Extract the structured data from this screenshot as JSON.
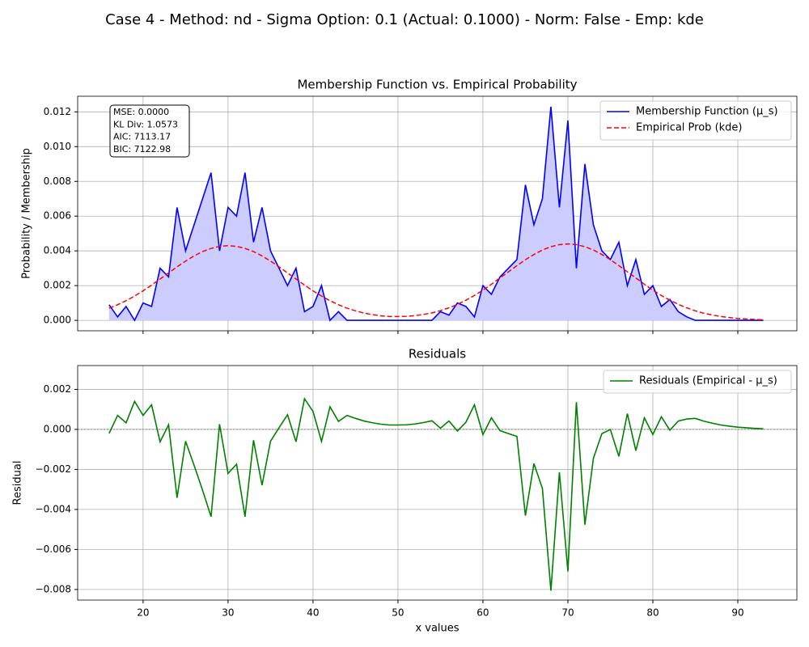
{
  "title": "Case 4 - Method: nd - Sigma Option: 0.1 (Actual: 0.1000) - Norm: False - Emp: kde",
  "chart_data": [
    {
      "type": "line",
      "title": "Membership Function vs. Empirical Probability",
      "y_label": "Probability / Membership",
      "x": [
        16,
        17,
        18,
        19,
        20,
        21,
        22,
        23,
        24,
        25,
        26,
        27,
        28,
        29,
        30,
        31,
        32,
        33,
        34,
        35,
        36,
        37,
        38,
        39,
        40,
        41,
        42,
        43,
        44,
        45,
        46,
        47,
        48,
        49,
        50,
        51,
        52,
        53,
        54,
        55,
        56,
        57,
        58,
        59,
        60,
        61,
        62,
        63,
        64,
        65,
        66,
        67,
        68,
        69,
        70,
        71,
        72,
        73,
        74,
        75,
        76,
        77,
        78,
        79,
        80,
        81,
        82,
        83,
        84,
        85,
        86,
        87,
        88,
        89,
        90,
        91,
        92,
        93
      ],
      "series": [
        {
          "name": "Membership Function (μ_s)",
          "color": "#0000ff",
          "linestyle": "solid",
          "fill": "#ccccff",
          "values": [
            0.0009,
            0.0002,
            0.0008,
            0,
            0.001,
            0.0008,
            0.003,
            0.0025,
            0.0065,
            0.004,
            0.0055,
            0.007,
            0.0085,
            0.004,
            0.0065,
            0.006,
            0.0085,
            0.0045,
            0.0065,
            0.004,
            0.003,
            0.002,
            0.003,
            0.0005,
            0.0008,
            0.002,
            0,
            0.0005,
            0,
            0,
            0,
            0,
            0,
            0,
            0,
            0,
            0,
            0,
            0,
            0.0005,
            0.0003,
            0.001,
            0.0008,
            0.0002,
            0.002,
            0.0015,
            0.0025,
            0.003,
            0.0035,
            0.0078,
            0.0055,
            0.007,
            0.0123,
            0.0065,
            0.0115,
            0.003,
            0.009,
            0.0055,
            0.004,
            0.0035,
            0.0045,
            0.002,
            0.0035,
            0.0015,
            0.002,
            0.0008,
            0.0012,
            0.0005,
            0.0002,
            0,
            0,
            0,
            0,
            0,
            0,
            0,
            0,
            0
          ]
        },
        {
          "name": "Empirical Prob (kde)",
          "color": "#ff0000",
          "linestyle": "dashed",
          "values": [
            0.0007,
            0.0009,
            0.00113,
            0.0014,
            0.0017,
            0.00203,
            0.00238,
            0.00273,
            0.00308,
            0.00341,
            0.00371,
            0.00396,
            0.00414,
            0.00426,
            0.0043,
            0.00426,
            0.00414,
            0.00396,
            0.00371,
            0.00341,
            0.00308,
            0.00273,
            0.00238,
            0.00203,
            0.0017,
            0.0014,
            0.00113,
            0.0009,
            0.0007,
            0.00055,
            0.00042,
            0.00033,
            0.00026,
            0.00022,
            0.00022,
            0.00023,
            0.00027,
            0.00034,
            0.00043,
            0.00056,
            0.00072,
            0.00092,
            0.00116,
            0.00143,
            0.00174,
            0.00208,
            0.00244,
            0.00279,
            0.00315,
            0.00349,
            0.00379,
            0.00405,
            0.00424,
            0.00436,
            0.0044,
            0.00436,
            0.00424,
            0.00405,
            0.00379,
            0.00349,
            0.00315,
            0.00279,
            0.00244,
            0.00208,
            0.00174,
            0.00143,
            0.00116,
            0.00092,
            0.00072,
            0.00055,
            0.00041,
            0.00031,
            0.00022,
            0.00016,
            0.00011,
            8e-05,
            5e-05,
            3e-05
          ]
        }
      ],
      "xlim": [
        12.3,
        96.95
      ],
      "xticks": [
        20,
        30,
        40,
        50,
        60,
        70,
        80,
        90
      ],
      "ylim": [
        -0.0006,
        0.0129
      ],
      "yticks": [
        {
          "value": 0,
          "label": "0.000"
        },
        {
          "value": 0.002,
          "label": "0.002"
        },
        {
          "value": 0.004,
          "label": "0.004"
        },
        {
          "value": 0.006,
          "label": "0.006"
        },
        {
          "value": 0.008,
          "label": "0.008"
        },
        {
          "value": 0.01,
          "label": "0.010"
        },
        {
          "value": 0.012,
          "label": "0.012"
        }
      ],
      "grid": true,
      "legend": "upper right",
      "annotations": [
        "MSE: 0.0000",
        "KL Div: 1.0573",
        "AIC: 7113.17",
        "BIC: 7122.98"
      ]
    },
    {
      "type": "line",
      "title": "Residuals",
      "x_label": "x values",
      "y_label": "Residual",
      "x": [
        16,
        17,
        18,
        19,
        20,
        21,
        22,
        23,
        24,
        25,
        26,
        27,
        28,
        29,
        30,
        31,
        32,
        33,
        34,
        35,
        36,
        37,
        38,
        39,
        40,
        41,
        42,
        43,
        44,
        45,
        46,
        47,
        48,
        49,
        50,
        51,
        52,
        53,
        54,
        55,
        56,
        57,
        58,
        59,
        60,
        61,
        62,
        63,
        64,
        65,
        66,
        67,
        68,
        69,
        70,
        71,
        72,
        73,
        74,
        75,
        76,
        77,
        78,
        79,
        80,
        81,
        82,
        83,
        84,
        85,
        86,
        87,
        88,
        89,
        90,
        91,
        92,
        93
      ],
      "series": [
        {
          "name": "Residuals (Empirical - μ_s)",
          "color": "#008000",
          "linestyle": "solid",
          "values": [
            -0.0002,
            0.0007,
            0.00033,
            0.0014,
            0.0007,
            0.00123,
            -0.00062,
            0.00023,
            -0.00342,
            -0.00059,
            -0.00179,
            -0.00304,
            -0.00436,
            0.00026,
            -0.0022,
            -0.00174,
            -0.00436,
            -0.00054,
            -0.00279,
            -0.00059,
            8e-05,
            0.00073,
            -0.00062,
            0.00153,
            0.0009,
            -0.0006,
            0.00113,
            0.0004,
            0.0007,
            0.00055,
            0.00042,
            0.00033,
            0.00026,
            0.00022,
            0.00022,
            0.00023,
            0.00027,
            0.00034,
            0.00043,
            6e-05,
            0.00042,
            -8e-05,
            0.00036,
            0.00123,
            -0.00026,
            0.00058,
            -6e-05,
            -0.00021,
            -0.00035,
            -0.00431,
            -0.00171,
            -0.00295,
            -0.00806,
            -0.00214,
            -0.0071,
            0.00136,
            -0.00476,
            -0.00145,
            -0.00021,
            -1e-05,
            -0.00135,
            0.00079,
            -0.00106,
            0.00058,
            -0.00026,
            0.00063,
            -4e-05,
            0.00042,
            0.00052,
            0.00055,
            0.00041,
            0.00031,
            0.00022,
            0.00016,
            0.00011,
            8e-05,
            5e-05,
            3e-05
          ]
        }
      ],
      "hline": 0,
      "xlim": [
        12.3,
        96.95
      ],
      "xticks": [
        20,
        30,
        40,
        50,
        60,
        70,
        80,
        90
      ],
      "ylim": [
        -0.00853,
        0.00319
      ],
      "yticks": [
        {
          "value": -0.008,
          "label": "−0.008"
        },
        {
          "value": -0.006,
          "label": "−0.006"
        },
        {
          "value": -0.004,
          "label": "−0.004"
        },
        {
          "value": -0.002,
          "label": "−0.002"
        },
        {
          "value": 0,
          "label": "0.000"
        },
        {
          "value": 0.002,
          "label": "0.002"
        }
      ],
      "grid": true,
      "legend": "upper right"
    }
  ]
}
